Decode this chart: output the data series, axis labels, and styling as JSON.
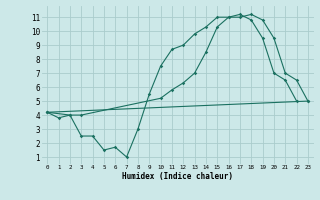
{
  "xlabel": "Humidex (Indice chaleur)",
  "bg_color": "#cce8e8",
  "grid_color": "#aacccc",
  "line_color": "#1a7060",
  "line1_x": [
    0,
    1,
    2,
    3,
    4,
    5,
    6,
    7,
    8,
    9,
    10,
    11,
    12,
    13,
    14,
    15,
    16,
    17,
    18,
    19,
    20,
    21,
    22
  ],
  "line1_y": [
    4.2,
    3.8,
    4.0,
    2.5,
    2.5,
    1.5,
    1.7,
    1.0,
    3.0,
    5.5,
    7.5,
    8.7,
    9.0,
    9.8,
    10.3,
    11.0,
    11.0,
    11.2,
    10.8,
    9.5,
    7.0,
    6.5,
    5.0
  ],
  "line2_x": [
    0,
    2,
    3,
    10,
    11,
    12,
    13,
    14,
    15,
    16,
    17,
    18,
    19,
    20,
    21,
    22,
    23
  ],
  "line2_y": [
    4.2,
    4.0,
    4.0,
    5.2,
    5.8,
    6.3,
    7.0,
    8.5,
    10.3,
    11.0,
    11.0,
    11.2,
    10.8,
    9.5,
    7.0,
    6.5,
    5.0
  ],
  "line3_x": [
    0,
    23
  ],
  "line3_y": [
    4.2,
    5.0
  ],
  "ylim": [
    0.5,
    11.8
  ],
  "xlim": [
    -0.5,
    23.5
  ],
  "yticks": [
    1,
    2,
    3,
    4,
    5,
    6,
    7,
    8,
    9,
    10,
    11
  ],
  "xticks": [
    0,
    1,
    2,
    3,
    4,
    5,
    6,
    7,
    8,
    9,
    10,
    11,
    12,
    13,
    14,
    15,
    16,
    17,
    18,
    19,
    20,
    21,
    22,
    23
  ]
}
